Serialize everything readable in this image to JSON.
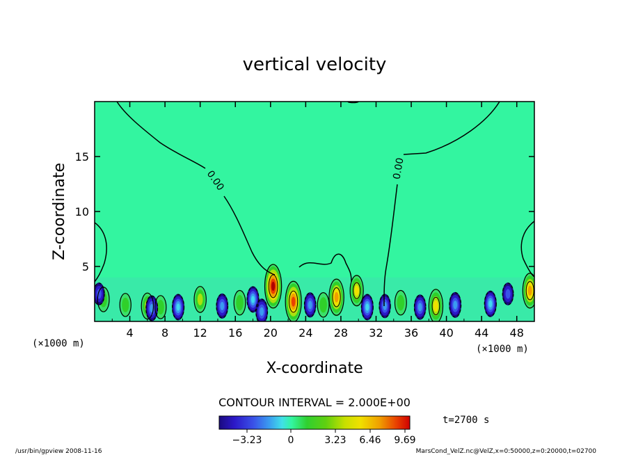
{
  "chart_data": {
    "type": "heatmap",
    "title": "vertical velocity",
    "xlabel": "X-coordinate",
    "ylabel": "Z-coordinate",
    "x_unit_left": "(×1000 m)",
    "x_unit_right": "(×1000 m)",
    "xlim": [
      0,
      50
    ],
    "ylim": [
      0,
      20
    ],
    "x_ticks": [
      4,
      8,
      12,
      16,
      20,
      24,
      28,
      32,
      36,
      40,
      44,
      48
    ],
    "y_ticks": [
      5,
      10,
      15
    ],
    "contour_labels": [
      "0.00",
      "0.00"
    ],
    "contour_interval": "CONTOUR INTERVAL = 2.000E+00",
    "colorbar_ticks": [
      "−3.23",
      "0",
      "3.23",
      "6.46",
      "9.69"
    ],
    "time_label": "t=2700 s",
    "footer_left": "/usr/bin/gpview   2008-11-16",
    "footer_right": "MarsCond_VelZ.nc@VelZ,x=0:50000,z=0:20000,t=02700",
    "hotspots": [
      {
        "x": 1.0,
        "z": 2.0,
        "w": 3.0
      },
      {
        "x": 3.5,
        "z": 1.5,
        "w": 2.5
      },
      {
        "x": 6.0,
        "z": 1.4,
        "w": 3.5
      },
      {
        "x": 7.5,
        "z": 1.3,
        "w": 2.5
      },
      {
        "x": 12.0,
        "z": 2.0,
        "w": 3.5
      },
      {
        "x": 16.5,
        "z": 1.7,
        "w": 3.0
      },
      {
        "x": 20.3,
        "z": 3.2,
        "w": 9.5
      },
      {
        "x": 22.6,
        "z": 1.8,
        "w": 8.5
      },
      {
        "x": 26.0,
        "z": 1.5,
        "w": 3.0
      },
      {
        "x": 27.5,
        "z": 2.2,
        "w": 7.0
      },
      {
        "x": 29.8,
        "z": 2.8,
        "w": 5.0
      },
      {
        "x": 34.8,
        "z": 1.7,
        "w": 3.0
      },
      {
        "x": 38.8,
        "z": 1.4,
        "w": 6.0
      },
      {
        "x": 49.5,
        "z": 2.8,
        "w": 6.5
      },
      {
        "x": 0.5,
        "z": 2.5,
        "w": -2.0
      },
      {
        "x": 6.5,
        "z": 1.2,
        "w": -3.0
      },
      {
        "x": 9.5,
        "z": 1.3,
        "w": -3.2
      },
      {
        "x": 14.5,
        "z": 1.4,
        "w": -2.8
      },
      {
        "x": 18.0,
        "z": 2.0,
        "w": -3.2
      },
      {
        "x": 19.0,
        "z": 0.9,
        "w": -3.0
      },
      {
        "x": 24.5,
        "z": 1.5,
        "w": -2.8
      },
      {
        "x": 31.0,
        "z": 1.3,
        "w": -3.2
      },
      {
        "x": 33.0,
        "z": 1.4,
        "w": -2.5
      },
      {
        "x": 37.0,
        "z": 1.3,
        "w": -2.8
      },
      {
        "x": 41.0,
        "z": 1.5,
        "w": -3.0
      },
      {
        "x": 45.0,
        "z": 1.6,
        "w": -3.2
      },
      {
        "x": 47.0,
        "z": 2.5,
        "w": -2.0
      }
    ],
    "colors": {
      "background": "#33f5a0",
      "neg": [
        "#1a0a80",
        "#2c18c8",
        "#3a52e8",
        "#3a9af0",
        "#40d8f0"
      ],
      "pos": [
        "#3ae06a",
        "#30d02a",
        "#a8e010",
        "#f0e000",
        "#f0a000",
        "#e84000",
        "#b00000"
      ],
      "line": "#000000"
    }
  }
}
